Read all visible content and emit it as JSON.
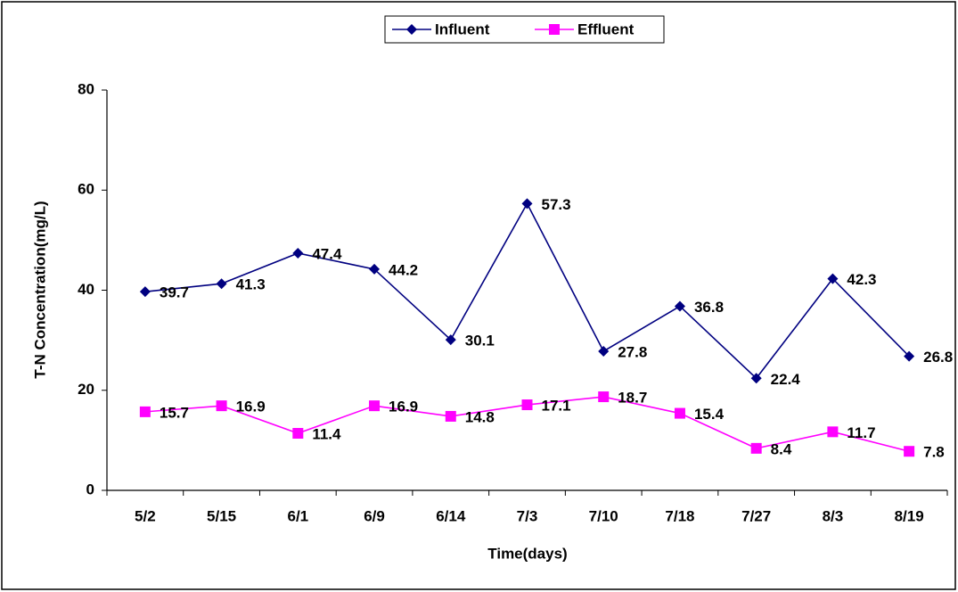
{
  "chart_data": {
    "type": "line",
    "x_label": "Time(days)",
    "y_label": "T-N Concentration(mg/L)",
    "categories": [
      "5/2",
      "5/15",
      "6/1",
      "6/9",
      "6/14",
      "7/3",
      "7/10",
      "7/18",
      "7/27",
      "8/3",
      "8/19"
    ],
    "series": [
      {
        "name": "Influent",
        "color": "#000080",
        "marker": "diamond",
        "values": [
          39.7,
          41.3,
          47.4,
          44.2,
          30.1,
          57.3,
          27.8,
          36.8,
          22.4,
          42.3,
          26.8
        ]
      },
      {
        "name": "Effluent",
        "color": "#ff00ff",
        "marker": "square",
        "values": [
          15.7,
          16.9,
          11.4,
          16.9,
          14.8,
          17.1,
          18.7,
          15.4,
          8.4,
          11.7,
          7.8
        ]
      }
    ],
    "ylim": [
      0,
      80
    ],
    "yticks": [
      0,
      20,
      40,
      60,
      80
    ],
    "grid": false,
    "legend": "top",
    "data_labels": true
  }
}
